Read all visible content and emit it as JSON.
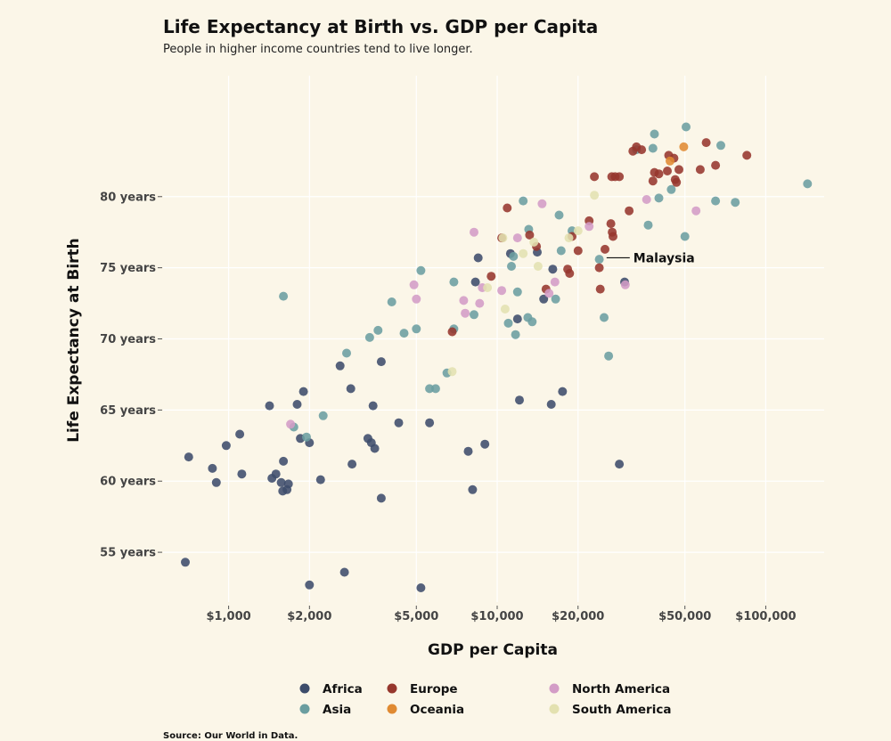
{
  "chart_data": {
    "type": "scatter",
    "title": "Life Expectancy at Birth vs. GDP per Capita",
    "subtitle": "People in higher income countries tend to live longer.",
    "xlabel": "GDP per Capita",
    "ylabel": "Life Expectancy at Birth",
    "source": "Source: Our World in Data.",
    "x_scale": "log",
    "xlim": [
      570,
      165000
    ],
    "ylim": [
      51.5,
      88.5
    ],
    "x_ticks": [
      {
        "value": 1000,
        "label": "$1,000"
      },
      {
        "value": 2000,
        "label": "$2,000"
      },
      {
        "value": 5000,
        "label": "$5,000"
      },
      {
        "value": 10000,
        "label": "$10,000"
      },
      {
        "value": 20000,
        "label": "$20,000"
      },
      {
        "value": 50000,
        "label": "$50,000"
      },
      {
        "value": 100000,
        "label": "$100,000"
      }
    ],
    "y_ticks": [
      {
        "value": 55,
        "label": "55 years"
      },
      {
        "value": 60,
        "label": "60 years"
      },
      {
        "value": 65,
        "label": "65 years"
      },
      {
        "value": 70,
        "label": "70 years"
      },
      {
        "value": 75,
        "label": "75 years"
      },
      {
        "value": 80,
        "label": "80 years"
      }
    ],
    "grid": true,
    "legend_position": "bottom",
    "annotations": [
      {
        "text": "Malaysia",
        "x": 28000,
        "y": 75.7
      }
    ],
    "series": [
      {
        "name": "Africa",
        "color": "#3d4c6b",
        "points": [
          [
            690,
            54.3
          ],
          [
            710,
            61.7
          ],
          [
            870,
            60.9
          ],
          [
            900,
            59.9
          ],
          [
            980,
            62.5
          ],
          [
            1100,
            63.3
          ],
          [
            1120,
            60.5
          ],
          [
            1420,
            65.3
          ],
          [
            1450,
            60.2
          ],
          [
            1500,
            60.5
          ],
          [
            1570,
            59.9
          ],
          [
            1590,
            59.3
          ],
          [
            1600,
            61.4
          ],
          [
            1650,
            59.4
          ],
          [
            1670,
            59.8
          ],
          [
            1800,
            65.4
          ],
          [
            1850,
            63.0
          ],
          [
            1900,
            66.3
          ],
          [
            2000,
            62.7
          ],
          [
            2000,
            52.7
          ],
          [
            2200,
            60.1
          ],
          [
            2600,
            68.1
          ],
          [
            2700,
            53.6
          ],
          [
            2850,
            66.5
          ],
          [
            2880,
            61.2
          ],
          [
            3300,
            63.0
          ],
          [
            3400,
            62.7
          ],
          [
            3450,
            65.3
          ],
          [
            3500,
            62.3
          ],
          [
            3700,
            58.8
          ],
          [
            3700,
            68.4
          ],
          [
            4300,
            64.1
          ],
          [
            5200,
            52.5
          ],
          [
            5600,
            64.1
          ],
          [
            7800,
            62.1
          ],
          [
            8100,
            59.4
          ],
          [
            8300,
            74.0
          ],
          [
            8500,
            75.7
          ],
          [
            9000,
            62.6
          ],
          [
            11200,
            76.0
          ],
          [
            11900,
            71.4
          ],
          [
            12100,
            65.7
          ],
          [
            14100,
            76.1
          ],
          [
            14900,
            72.8
          ],
          [
            15900,
            65.4
          ],
          [
            16100,
            74.9
          ],
          [
            17500,
            66.3
          ],
          [
            28500,
            61.2
          ],
          [
            29800,
            74.0
          ]
        ]
      },
      {
        "name": "Asia",
        "color": "#6b9ea0",
        "points": [
          [
            1600,
            73.0
          ],
          [
            1750,
            63.8
          ],
          [
            1950,
            63.1
          ],
          [
            2250,
            64.6
          ],
          [
            2750,
            69.0
          ],
          [
            3350,
            70.1
          ],
          [
            3600,
            70.6
          ],
          [
            4050,
            72.6
          ],
          [
            4500,
            70.4
          ],
          [
            5000,
            70.7
          ],
          [
            5200,
            74.8
          ],
          [
            5600,
            66.5
          ],
          [
            5900,
            66.5
          ],
          [
            6500,
            67.6
          ],
          [
            6900,
            70.7
          ],
          [
            6900,
            74.0
          ],
          [
            8200,
            71.7
          ],
          [
            11000,
            71.1
          ],
          [
            11300,
            75.1
          ],
          [
            11500,
            75.8
          ],
          [
            11700,
            70.3
          ],
          [
            11900,
            73.3
          ],
          [
            12500,
            79.7
          ],
          [
            13000,
            71.5
          ],
          [
            13100,
            77.7
          ],
          [
            13500,
            71.2
          ],
          [
            16500,
            72.8
          ],
          [
            17000,
            78.7
          ],
          [
            17300,
            76.2
          ],
          [
            19000,
            77.6
          ],
          [
            24000,
            75.6
          ],
          [
            25000,
            71.5
          ],
          [
            26000,
            68.8
          ],
          [
            33000,
            83.3
          ],
          [
            36500,
            78.0
          ],
          [
            38000,
            83.4
          ],
          [
            38500,
            84.4
          ],
          [
            40000,
            79.9
          ],
          [
            44500,
            80.5
          ],
          [
            50000,
            77.2
          ],
          [
            50500,
            84.9
          ],
          [
            65000,
            79.7
          ],
          [
            68000,
            83.6
          ],
          [
            77000,
            79.6
          ],
          [
            143000,
            80.9
          ]
        ]
      },
      {
        "name": "Europe",
        "color": "#96372d",
        "points": [
          [
            6800,
            70.5
          ],
          [
            9500,
            74.4
          ],
          [
            10400,
            77.1
          ],
          [
            10900,
            79.2
          ],
          [
            13200,
            77.3
          ],
          [
            14000,
            76.5
          ],
          [
            15200,
            73.5
          ],
          [
            18300,
            74.9
          ],
          [
            18600,
            74.6
          ],
          [
            19000,
            77.2
          ],
          [
            20000,
            76.2
          ],
          [
            22000,
            78.3
          ],
          [
            23000,
            81.4
          ],
          [
            24000,
            75.0
          ],
          [
            24200,
            73.5
          ],
          [
            25200,
            76.3
          ],
          [
            26500,
            78.1
          ],
          [
            26700,
            81.4
          ],
          [
            26800,
            77.5
          ],
          [
            27000,
            77.2
          ],
          [
            27500,
            81.4
          ],
          [
            28500,
            81.4
          ],
          [
            31000,
            79.0
          ],
          [
            32000,
            83.2
          ],
          [
            33000,
            83.5
          ],
          [
            34500,
            83.3
          ],
          [
            38000,
            81.1
          ],
          [
            38500,
            81.7
          ],
          [
            40000,
            81.6
          ],
          [
            43000,
            81.8
          ],
          [
            43500,
            82.9
          ],
          [
            45500,
            82.7
          ],
          [
            46000,
            81.2
          ],
          [
            46500,
            81.0
          ],
          [
            47500,
            81.9
          ],
          [
            57000,
            81.9
          ],
          [
            60000,
            83.8
          ],
          [
            65000,
            82.2
          ],
          [
            85000,
            82.9
          ]
        ]
      },
      {
        "name": "Oceania",
        "color": "#e08a32",
        "points": [
          [
            44000,
            82.5
          ],
          [
            49500,
            83.5
          ]
        ]
      },
      {
        "name": "North America",
        "color": "#d39cc6",
        "points": [
          [
            1700,
            64.0
          ],
          [
            4900,
            73.8
          ],
          [
            5000,
            72.8
          ],
          [
            7500,
            72.7
          ],
          [
            7600,
            71.8
          ],
          [
            8200,
            77.5
          ],
          [
            8600,
            72.5
          ],
          [
            8800,
            73.6
          ],
          [
            10400,
            73.4
          ],
          [
            11900,
            77.1
          ],
          [
            14700,
            79.5
          ],
          [
            15600,
            73.2
          ],
          [
            16400,
            74.0
          ],
          [
            22000,
            77.9
          ],
          [
            36000,
            79.8
          ],
          [
            55000,
            79.0
          ],
          [
            30000,
            73.8
          ]
        ]
      },
      {
        "name": "South America",
        "color": "#e3e1b0",
        "points": [
          [
            6800,
            67.7
          ],
          [
            9200,
            73.6
          ],
          [
            10500,
            77.1
          ],
          [
            10700,
            72.1
          ],
          [
            12500,
            76.0
          ],
          [
            13700,
            76.8
          ],
          [
            14200,
            75.1
          ],
          [
            18500,
            77.1
          ],
          [
            20000,
            77.6
          ],
          [
            23000,
            80.1
          ]
        ]
      }
    ]
  }
}
